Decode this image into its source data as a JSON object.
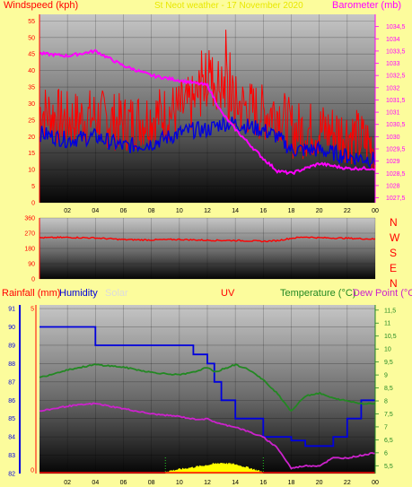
{
  "header": {
    "wind_title": "Windspeed (kph)",
    "site_date": "St Neot weather - 17 November 2020",
    "baro_title": "Barometer (mb)"
  },
  "wind_panel": {
    "y_ticks": [
      "0",
      "5",
      "10",
      "15",
      "20",
      "25",
      "30",
      "35",
      "40",
      "45",
      "50",
      "55"
    ],
    "baro_ticks": [
      "1027,5",
      "1028",
      "1028,5",
      "1029",
      "1029,5",
      "1030",
      "1030,5",
      "1031",
      "1031,5",
      "1032",
      "1032,5",
      "1033",
      "1033,5",
      "1034",
      "1034,5"
    ],
    "x_ticks": [
      "02",
      "04",
      "06",
      "08",
      "10",
      "12",
      "14",
      "16",
      "18",
      "20",
      "22",
      "00"
    ]
  },
  "dir_panel": {
    "y_ticks": [
      "0",
      "90",
      "180",
      "270",
      "360"
    ],
    "compass": [
      "N",
      "W",
      "S",
      "E",
      "N"
    ]
  },
  "bottom_panel": {
    "rain_title": "Rainfall (mm)",
    "humidity_title": "Humidity",
    "solar_title": "Solar",
    "uv_title": "UV",
    "temp_title": "Temperature (°C)",
    "dew_title": "Dew Point (°C)",
    "hum_ticks": [
      "82",
      "83",
      "84",
      "85",
      "86",
      "87",
      "88",
      "89",
      "90",
      "91"
    ],
    "rain_ticks": [
      "0",
      "5"
    ],
    "temp_ticks": [
      "5,5",
      "6",
      "6,5",
      "7",
      "7,5",
      "8",
      "8,5",
      "9",
      "9,5",
      "10",
      "10,5",
      "11",
      "11,5"
    ]
  },
  "colors": {
    "background": "#fcfc9c",
    "wind": "#ff0000",
    "wind_avg": "#0000dd",
    "barometer": "#ff00ff",
    "direction": "#ff0000",
    "temperature": "#228822",
    "dew_point": "#cc22cc",
    "humidity": "#0000dd",
    "solar": "#ffff00",
    "uv": "#22cc22"
  },
  "chart_data": [
    {
      "type": "line",
      "title": "St Neot weather - 17 November 2020",
      "ylabel": "Windspeed (kph)",
      "y2label": "Barometer (mb)",
      "ylim": [
        0,
        57
      ],
      "y2lim": [
        1027.3,
        1035
      ],
      "x_hours": [
        0,
        2,
        4,
        6,
        8,
        10,
        11,
        12,
        13,
        14,
        16,
        17,
        18,
        20,
        22,
        24
      ],
      "series": [
        {
          "name": "Windspeed (kph)",
          "values": [
            28,
            25,
            26,
            24,
            26,
            28,
            30,
            38,
            35,
            30,
            27,
            28,
            22,
            22,
            21,
            17
          ]
        },
        {
          "name": "Barometer (mb)",
          "values": [
            1033.4,
            1033.3,
            1033.5,
            1032.9,
            1032.5,
            1032.3,
            1032.2,
            1032.1,
            1031,
            1030.3,
            1029.1,
            1028.6,
            1028.5,
            1028.9,
            1028.7,
            1028.7
          ]
        },
        {
          "values": [
            21,
            19,
            20,
            17,
            18,
            21,
            22,
            22,
            24,
            24,
            22,
            20,
            16,
            16,
            14,
            13
          ]
        }
      ]
    },
    {
      "type": "line",
      "ylim": [
        0,
        360
      ],
      "x_hours": [
        0,
        2,
        4,
        6,
        8,
        10,
        12,
        14,
        16,
        17,
        18,
        19,
        20,
        22,
        24
      ],
      "series": [
        {
          "values": [
            243,
            245,
            242,
            232,
            230,
            233,
            228,
            227,
            222,
            226,
            240,
            248,
            243,
            240,
            235
          ]
        }
      ]
    },
    {
      "type": "line",
      "ylim": [
        82,
        91.2
      ],
      "y2lim": [
        5.2,
        11.7
      ],
      "x_hours": [
        0,
        2,
        4,
        6,
        8,
        10,
        11,
        12,
        12.5,
        13,
        14,
        15,
        16,
        17,
        18,
        19,
        20,
        21,
        22,
        23,
        24
      ],
      "series": [
        {
          "name": "Humidity",
          "values": [
            90,
            90,
            89,
            89,
            89,
            89,
            88.5,
            88,
            87,
            86,
            85,
            85,
            84,
            84,
            83.8,
            83.5,
            83.5,
            84,
            85,
            86,
            86
          ]
        },
        {
          "name": "Temperature (°C)",
          "values": [
            8.9,
            9.2,
            9.4,
            9.3,
            9.1,
            9,
            9.1,
            9.3,
            9.1,
            9.2,
            9.4,
            9.2,
            8.8,
            8.3,
            7.6,
            8.2,
            8.3,
            8.1,
            8.0,
            7.9,
            7.9
          ]
        },
        {
          "name": "Dew Point (°C)",
          "values": [
            7.6,
            7.8,
            7.9,
            7.7,
            7.5,
            7.4,
            7.3,
            7.3,
            7.2,
            7.1,
            7.0,
            6.8,
            6.6,
            6.2,
            5.4,
            5.5,
            5.5,
            5.8,
            5.8,
            5.9,
            6.0
          ]
        },
        {
          "name": "Solar",
          "x": [
            9,
            10,
            11,
            12,
            13,
            14,
            15,
            16
          ],
          "values": [
            0.3,
            0.6,
            0.9,
            1.2,
            1.5,
            1.3,
            0.8,
            0.2
          ]
        }
      ]
    }
  ]
}
